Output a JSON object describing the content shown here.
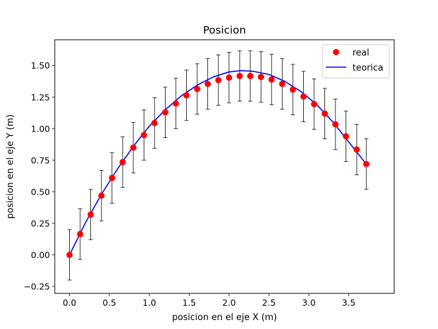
{
  "chart_data": {
    "type": "scatter",
    "title": "Posicion",
    "xlabel": "posicion en el eje X (m)",
    "ylabel": "posicion en el eje Y (m)",
    "xlim": [
      -0.185,
      4.07
    ],
    "ylim": [
      -0.305,
      1.705
    ],
    "xticks": [
      0.0,
      0.5,
      1.0,
      1.5,
      2.0,
      2.5,
      3.0,
      3.5
    ],
    "xtick_labels": [
      "0.0",
      "0.5",
      "1.0",
      "1.5",
      "2.0",
      "2.5",
      "3.0",
      "3.5"
    ],
    "yticks": [
      -0.25,
      0.0,
      0.25,
      0.5,
      0.75,
      1.0,
      1.25,
      1.5
    ],
    "ytick_labels": [
      "−0.25",
      "0.00",
      "0.25",
      "0.50",
      "0.75",
      "1.00",
      "1.25",
      "1.50"
    ],
    "grid": false,
    "legend_position": "top-right",
    "error_bar": 0.2,
    "colors": {
      "real": "#ff0000",
      "teorica": "#0000ff",
      "errorbar": "#000000"
    },
    "series": [
      {
        "name": "real",
        "kind": "scatter_errorbar",
        "x": [
          0.0,
          0.133,
          0.266,
          0.4,
          0.533,
          0.666,
          0.8,
          0.933,
          1.066,
          1.2,
          1.333,
          1.466,
          1.6,
          1.733,
          1.866,
          2.0,
          2.133,
          2.266,
          2.4,
          2.533,
          2.666,
          2.8,
          2.933,
          3.066,
          3.2,
          3.333,
          3.466,
          3.6,
          3.72
        ],
        "y": [
          0.0,
          0.165,
          0.32,
          0.47,
          0.61,
          0.735,
          0.85,
          0.95,
          1.045,
          1.13,
          1.2,
          1.265,
          1.315,
          1.355,
          1.385,
          1.405,
          1.418,
          1.418,
          1.41,
          1.39,
          1.355,
          1.31,
          1.255,
          1.195,
          1.12,
          1.035,
          0.94,
          0.835,
          0.72
        ]
      },
      {
        "name": "teorica",
        "kind": "line",
        "x": [
          0.0,
          0.2,
          0.4,
          0.6,
          0.8,
          1.0,
          1.2,
          1.4,
          1.6,
          1.8,
          2.0,
          2.15,
          2.3,
          2.5,
          2.7,
          2.9,
          3.1,
          3.3,
          3.5,
          3.72
        ],
        "y": [
          0.0,
          0.255,
          0.48,
          0.68,
          0.86,
          1.02,
          1.15,
          1.26,
          1.345,
          1.41,
          1.45,
          1.46,
          1.455,
          1.43,
          1.375,
          1.295,
          1.19,
          1.055,
          0.895,
          0.72
        ]
      }
    ]
  }
}
